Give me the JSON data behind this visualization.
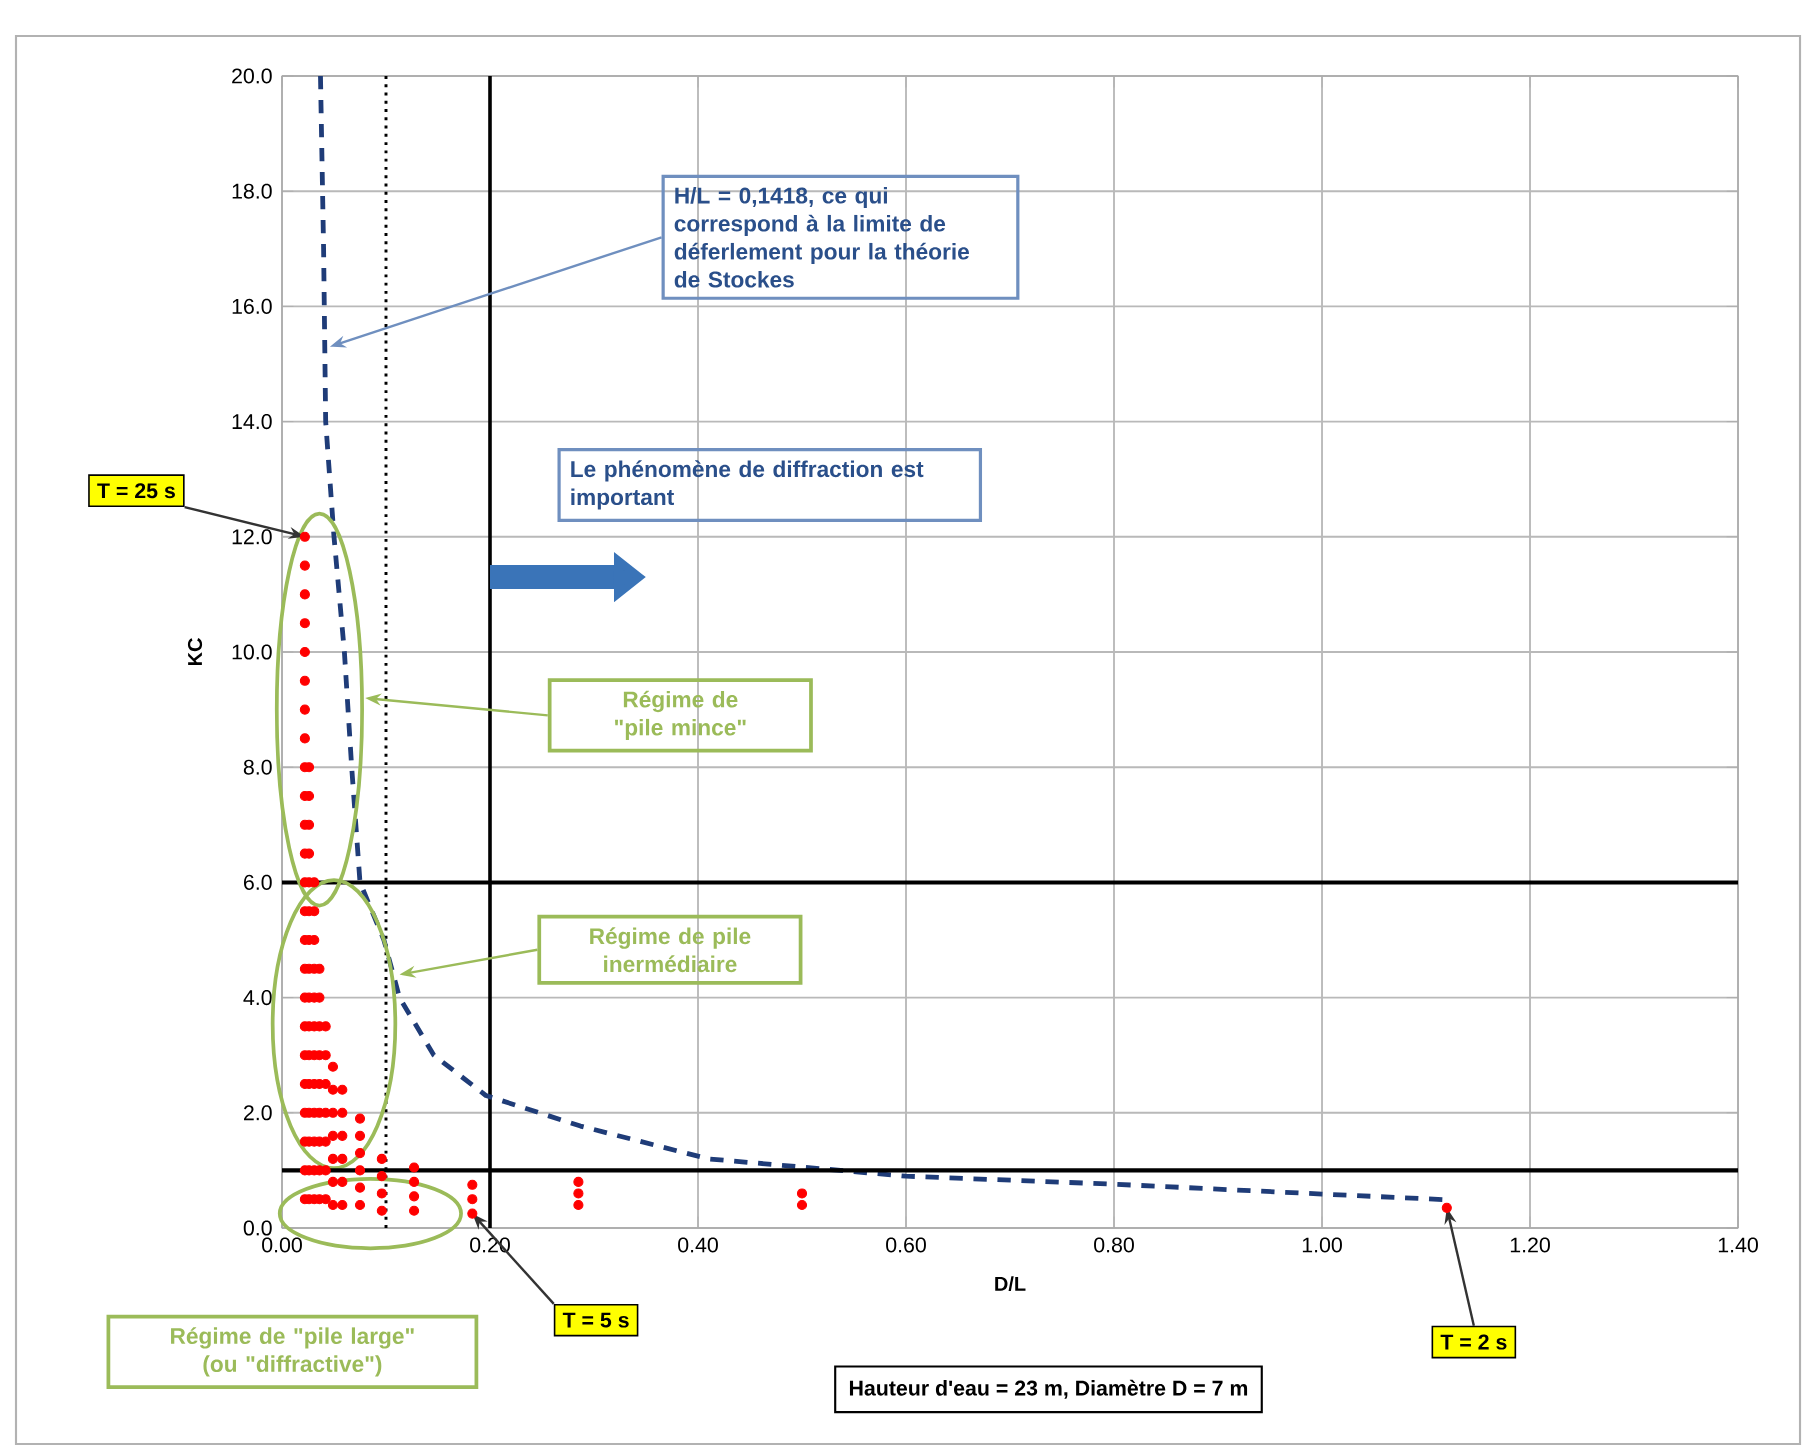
{
  "chart_data": {
    "type": "scatter",
    "xlabel": "D/L",
    "ylabel": "KC",
    "xlim": [
      0,
      1.4
    ],
    "ylim": [
      0,
      20
    ],
    "xticks": [
      {
        "value": 0,
        "label": "0.00"
      },
      {
        "value": 0.2,
        "label": "0.20"
      },
      {
        "value": 0.4,
        "label": "0.40"
      },
      {
        "value": 0.6,
        "label": "0.60"
      },
      {
        "value": 0.8,
        "label": "0.80"
      },
      {
        "value": 1.0,
        "label": "1.00"
      },
      {
        "value": 1.2,
        "label": "1.20"
      },
      {
        "value": 1.4,
        "label": "1.40"
      }
    ],
    "yticks": [
      {
        "value": 0,
        "label": "0.0"
      },
      {
        "value": 2,
        "label": "2.0"
      },
      {
        "value": 4,
        "label": "4.0"
      },
      {
        "value": 6,
        "label": "6.0"
      },
      {
        "value": 8,
        "label": "8.0"
      },
      {
        "value": 10,
        "label": "10.0"
      },
      {
        "value": 12,
        "label": "12.0"
      },
      {
        "value": 14,
        "label": "14.0"
      },
      {
        "value": 16,
        "label": "16.0"
      },
      {
        "value": 18,
        "label": "18.0"
      },
      {
        "value": 20,
        "label": "20.0"
      }
    ],
    "grid": true,
    "series": [
      {
        "color": "#ff0000",
        "marker": "circle",
        "x": [
          0.022,
          0.022,
          0.022,
          0.022,
          0.022,
          0.022,
          0.022,
          0.022,
          0.022,
          0.022,
          0.022,
          0.022,
          0.022,
          0.022,
          0.022,
          0.022,
          0.022,
          0.022,
          0.022,
          0.022,
          0.022,
          0.022,
          0.022,
          0.022,
          0.026,
          0.026,
          0.026,
          0.026,
          0.026,
          0.026,
          0.026,
          0.026,
          0.026,
          0.026,
          0.026,
          0.026,
          0.026,
          0.026,
          0.026,
          0.026,
          0.031,
          0.031,
          0.031,
          0.031,
          0.031,
          0.031,
          0.031,
          0.031,
          0.031,
          0.031,
          0.031,
          0.031,
          0.036,
          0.036,
          0.036,
          0.036,
          0.036,
          0.036,
          0.036,
          0.036,
          0.036,
          0.042,
          0.042,
          0.042,
          0.042,
          0.042,
          0.042,
          0.042,
          0.049,
          0.049,
          0.049,
          0.049,
          0.049,
          0.049,
          0.049,
          0.058,
          0.058,
          0.058,
          0.058,
          0.058,
          0.058,
          0.075,
          0.075,
          0.075,
          0.075,
          0.075,
          0.075,
          0.096,
          0.096,
          0.096,
          0.096,
          0.127,
          0.127,
          0.127,
          0.127,
          0.183,
          0.183,
          0.183,
          0.285,
          0.285,
          0.285,
          0.5,
          0.5,
          1.12
        ],
        "values": [
          0.5,
          1.0,
          1.5,
          2.0,
          2.5,
          3.0,
          3.5,
          4.0,
          4.5,
          5.0,
          5.5,
          6.0,
          6.5,
          7.0,
          7.5,
          8.0,
          8.5,
          9.0,
          9.5,
          10.0,
          10.5,
          11.0,
          11.5,
          12.0,
          0.5,
          1.0,
          1.5,
          2.0,
          2.5,
          3.0,
          3.5,
          4.0,
          4.5,
          5.0,
          5.5,
          6.0,
          6.5,
          7.0,
          7.5,
          8.0,
          0.5,
          1.0,
          1.5,
          2.0,
          2.5,
          3.0,
          3.5,
          4.0,
          4.5,
          5.0,
          5.5,
          6.0,
          0.5,
          1.0,
          1.5,
          2.0,
          2.5,
          3.0,
          3.5,
          4.0,
          4.5,
          0.5,
          1.0,
          1.5,
          2.0,
          2.5,
          3.0,
          3.5,
          0.4,
          0.8,
          1.2,
          1.6,
          2.0,
          2.4,
          2.8,
          0.4,
          0.8,
          1.2,
          1.6,
          2.0,
          2.4,
          0.4,
          0.7,
          1.0,
          1.3,
          1.6,
          1.9,
          0.3,
          0.6,
          0.9,
          1.2,
          0.3,
          0.55,
          0.8,
          1.05,
          0.25,
          0.5,
          0.75,
          0.4,
          0.6,
          0.8,
          0.4,
          0.6,
          0.35
        ]
      },
      {
        "type": "line",
        "color": "#1f3c78",
        "line_style": "dashed",
        "marker": "none",
        "x": [
          0.037,
          0.04,
          0.042,
          0.046,
          0.05,
          0.06,
          0.067,
          0.075,
          0.098,
          0.113,
          0.146,
          0.196,
          0.287,
          0.41,
          0.6,
          0.8,
          1.0,
          1.12
        ],
        "values": [
          20,
          17,
          14,
          13,
          12,
          10,
          8,
          6,
          5,
          4,
          3,
          2.3,
          1.77,
          1.2,
          0.9,
          0.76,
          0.59,
          0.49
        ]
      }
    ],
    "ref_lines": [
      {
        "axis": "x",
        "value": 0.1,
        "color": "#000000",
        "line_style": "dotted"
      },
      {
        "axis": "x",
        "value": 0.2,
        "color": "#000000",
        "line_style": "solid"
      },
      {
        "axis": "y",
        "value": 6,
        "color": "#000000",
        "line_style": "solid"
      },
      {
        "axis": "y",
        "value": 1,
        "color": "#000000",
        "line_style": "solid"
      }
    ],
    "annotations": [
      {
        "text": "H/L = 0,1418,  ce qui correspond à la limite de déferlement pour la théorie de Stockes",
        "x": 0.046,
        "y": 15.3
      },
      "Le phénomène de diffraction est important",
      "Régime de \"pile mince\"",
      "Régime de pile inermédiaire",
      "Régime de \"pile large\" (ou \"diffractive\")",
      {
        "text": "T = 25 s",
        "x": 0.022,
        "y": 12.0
      },
      {
        "text": "T = 5 s",
        "x": 0.183,
        "y": 0.25
      },
      {
        "text": "T = 2 s",
        "x": 1.12,
        "y": 0.35
      },
      "Hauteur d'eau = 23 m, Diamètre D = 7 m"
    ]
  }
}
